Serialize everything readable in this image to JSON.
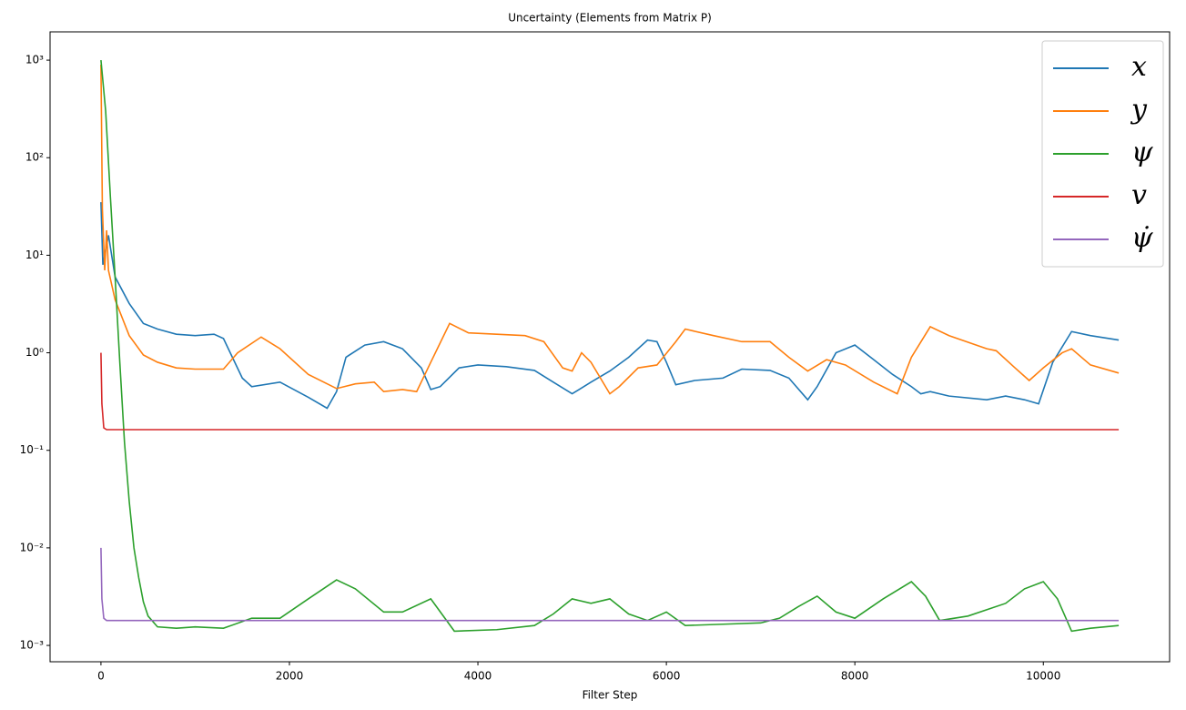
{
  "chart_data": {
    "type": "line",
    "title": "Uncertainty (Elements from Matrix P)",
    "x_label": "Filter Step",
    "log_y": true,
    "legend": "upper right",
    "xlim": [
      -540,
      11340
    ],
    "xticks": [
      0,
      2000,
      4000,
      6000,
      8000,
      10000
    ],
    "ylim": [
      0.00068,
      1950
    ],
    "yticks": [
      {
        "value": 0.001,
        "label": "10⁻³"
      },
      {
        "value": 0.01,
        "label": "10⁻²"
      },
      {
        "value": 0.1,
        "label": "10⁻¹"
      },
      {
        "value": 1,
        "label": "10⁰"
      },
      {
        "value": 10,
        "label": "10¹"
      },
      {
        "value": 100,
        "label": "10²"
      },
      {
        "value": 1000,
        "label": "10³"
      }
    ],
    "series": [
      {
        "name": "x",
        "color": "#1f77b4",
        "x": [
          0,
          20,
          80,
          150,
          300,
          450,
          600,
          800,
          1000,
          1200,
          1300,
          1500,
          1600,
          1900,
          2200,
          2400,
          2500,
          2600,
          2800,
          3000,
          3200,
          3400,
          3500,
          3600,
          3800,
          4000,
          4300,
          4600,
          4800,
          5000,
          5200,
          5400,
          5600,
          5800,
          5900,
          6000,
          6100,
          6300,
          6600,
          6800,
          7100,
          7300,
          7500,
          7600,
          7800,
          8000,
          8200,
          8400,
          8600,
          8700,
          8800,
          9000,
          9400,
          9600,
          9800,
          9950,
          10100,
          10300,
          10500,
          10800
        ],
        "values": [
          35,
          8,
          16,
          6,
          3.2,
          2.0,
          1.75,
          1.55,
          1.5,
          1.55,
          1.4,
          0.55,
          0.45,
          0.5,
          0.35,
          0.27,
          0.4,
          0.9,
          1.2,
          1.3,
          1.1,
          0.7,
          0.42,
          0.45,
          0.7,
          0.75,
          0.72,
          0.66,
          0.5,
          0.38,
          0.5,
          0.65,
          0.9,
          1.35,
          1.3,
          0.8,
          0.47,
          0.52,
          0.55,
          0.68,
          0.66,
          0.55,
          0.33,
          0.45,
          1.0,
          1.2,
          0.85,
          0.6,
          0.45,
          0.38,
          0.4,
          0.36,
          0.33,
          0.36,
          0.33,
          0.3,
          0.8,
          1.65,
          1.5,
          1.35
        ]
      },
      {
        "name": "y",
        "color": "#ff7f0e",
        "x": [
          0,
          15,
          40,
          60,
          80,
          150,
          300,
          450,
          600,
          800,
          1000,
          1300,
          1450,
          1700,
          1900,
          2200,
          2500,
          2700,
          2900,
          3000,
          3200,
          3350,
          3500,
          3700,
          3900,
          4200,
          4500,
          4700,
          4900,
          5000,
          5100,
          5200,
          5400,
          5500,
          5700,
          5900,
          6100,
          6200,
          6500,
          6800,
          7100,
          7300,
          7500,
          7700,
          7900,
          8200,
          8450,
          8600,
          8800,
          9000,
          9400,
          9500,
          9700,
          9850,
          10000,
          10200,
          10300,
          10500,
          10800
        ],
        "values": [
          900,
          30,
          7,
          18,
          7,
          3.5,
          1.5,
          0.95,
          0.8,
          0.7,
          0.68,
          0.68,
          1.0,
          1.45,
          1.1,
          0.6,
          0.43,
          0.48,
          0.5,
          0.4,
          0.42,
          0.4,
          0.8,
          2.0,
          1.6,
          1.55,
          1.5,
          1.3,
          0.7,
          0.65,
          1.0,
          0.8,
          0.38,
          0.45,
          0.7,
          0.75,
          1.3,
          1.75,
          1.5,
          1.3,
          1.3,
          0.9,
          0.65,
          0.85,
          0.75,
          0.5,
          0.38,
          0.9,
          1.85,
          1.5,
          1.1,
          1.05,
          0.7,
          0.52,
          0.7,
          1.0,
          1.1,
          0.75,
          0.62
        ]
      },
      {
        "name": "ψ",
        "color": "#2ca02c",
        "x": [
          0,
          50,
          100,
          150,
          200,
          250,
          300,
          350,
          400,
          450,
          500,
          600,
          800,
          1000,
          1300,
          1600,
          1900,
          2200,
          2500,
          2700,
          3000,
          3200,
          3500,
          3750,
          4200,
          4600,
          4800,
          5000,
          5200,
          5400,
          5600,
          5800,
          6000,
          6200,
          6600,
          7000,
          7200,
          7400,
          7600,
          7800,
          8000,
          8300,
          8600,
          8750,
          8900,
          9200,
          9600,
          9800,
          10000,
          10150,
          10300,
          10500,
          10800
        ],
        "values": [
          1000,
          300,
          40,
          6,
          0.8,
          0.12,
          0.03,
          0.01,
          0.005,
          0.0028,
          0.002,
          0.00155,
          0.0015,
          0.00155,
          0.0015,
          0.0019,
          0.0019,
          0.003,
          0.0047,
          0.0038,
          0.0022,
          0.0022,
          0.003,
          0.0014,
          0.00145,
          0.0016,
          0.0021,
          0.003,
          0.0027,
          0.003,
          0.0021,
          0.0018,
          0.0022,
          0.0016,
          0.00165,
          0.0017,
          0.0019,
          0.0025,
          0.0032,
          0.0022,
          0.0019,
          0.003,
          0.0045,
          0.0032,
          0.0018,
          0.002,
          0.0027,
          0.0038,
          0.0045,
          0.003,
          0.0014,
          0.0015,
          0.0016
        ]
      },
      {
        "name": "v",
        "color": "#d62728",
        "x": [
          0,
          10,
          30,
          60,
          10800
        ],
        "values": [
          1.0,
          0.3,
          0.17,
          0.163,
          0.163
        ]
      },
      {
        "name": "ψ̇",
        "color": "#9467bd",
        "x": [
          0,
          10,
          30,
          60,
          10800
        ],
        "values": [
          0.01,
          0.003,
          0.0019,
          0.0018,
          0.0018
        ]
      }
    ]
  }
}
